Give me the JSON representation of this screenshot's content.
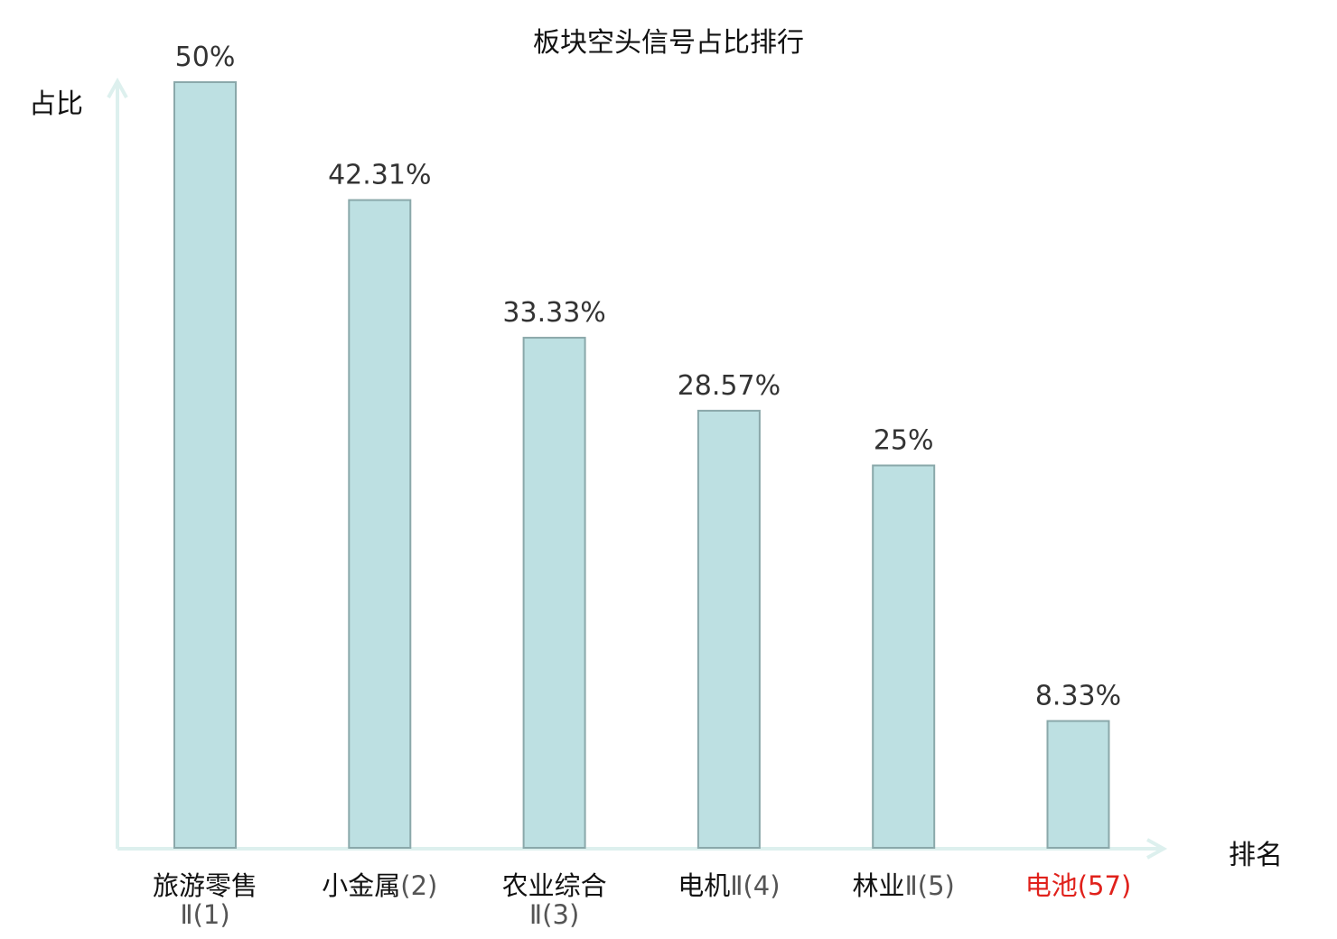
{
  "chart_data": {
    "type": "bar",
    "title": "板块空头信号占比排行",
    "ylabel": "占比",
    "xlabel": "排名",
    "ylim": [
      0,
      50
    ],
    "categories": [
      {
        "name": "旅游零售",
        "rank": "Ⅱ(1)",
        "highlight": false
      },
      {
        "name": "小金属",
        "rank": "(2)",
        "highlight": false
      },
      {
        "name": "农业综合",
        "rank": "Ⅱ(3)",
        "highlight": false
      },
      {
        "name": "电机",
        "rank": "Ⅱ(4)",
        "highlight": false
      },
      {
        "name": "林业",
        "rank": "Ⅱ(5)",
        "highlight": false
      },
      {
        "name": "电池",
        "rank": "(57)",
        "highlight": true
      }
    ],
    "values": [
      50,
      42.31,
      33.33,
      28.57,
      25,
      8.33
    ],
    "value_labels": [
      "50%",
      "42.31%",
      "33.33%",
      "28.57%",
      "25%",
      "8.33%"
    ],
    "colors": {
      "bar_fill": "#bde0e2",
      "bar_stroke": "#8aa8aa",
      "axis": "#ddf0ee",
      "highlight": "#e0211b"
    }
  }
}
